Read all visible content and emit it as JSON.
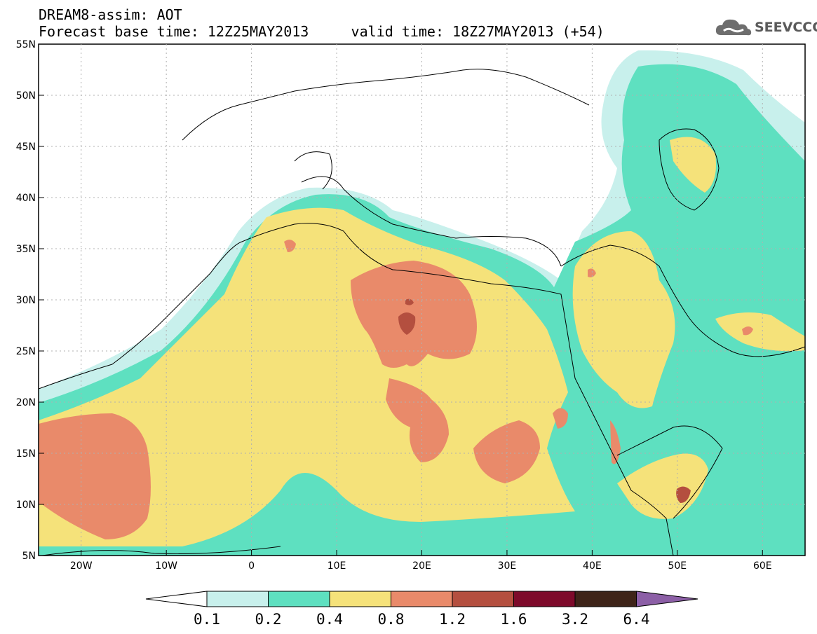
{
  "header": {
    "line1": "DREAM8-assim: AOT",
    "line2_left": "Forecast base time: 12Z25MAY2013",
    "line2_right": "valid time: 18Z27MAY2013 (+54)"
  },
  "logo": {
    "icon": "cloud-icon",
    "text": "SEEVCCC"
  },
  "axes": {
    "lon_ticks": [
      "20W",
      "10W",
      "0",
      "10E",
      "20E",
      "30E",
      "40E",
      "50E",
      "60E"
    ],
    "lat_ticks": [
      "55N",
      "50N",
      "45N",
      "40N",
      "35N",
      "30N",
      "25N",
      "20N",
      "15N",
      "10N",
      "5N"
    ],
    "lon_range": [
      -25,
      65
    ],
    "lat_range": [
      5,
      55
    ]
  },
  "colorbar": {
    "labels": [
      "0.1",
      "0.2",
      "0.4",
      "0.8",
      "1.2",
      "1.6",
      "3.2",
      "6.4"
    ],
    "colors": [
      "#c8f0ec",
      "#5ee0c0",
      "#f5e27a",
      "#e98a6a",
      "#b44f3f",
      "#7d0a2a",
      "#3e2418",
      "#8c5fa6"
    ],
    "under_color": "#ffffff"
  },
  "colors": {
    "c01": "#c8f0ec",
    "c02": "#5ee0c0",
    "c04": "#f5e27a",
    "c08": "#e98a6a",
    "c12": "#b44f3f",
    "coast": "#000000"
  }
}
